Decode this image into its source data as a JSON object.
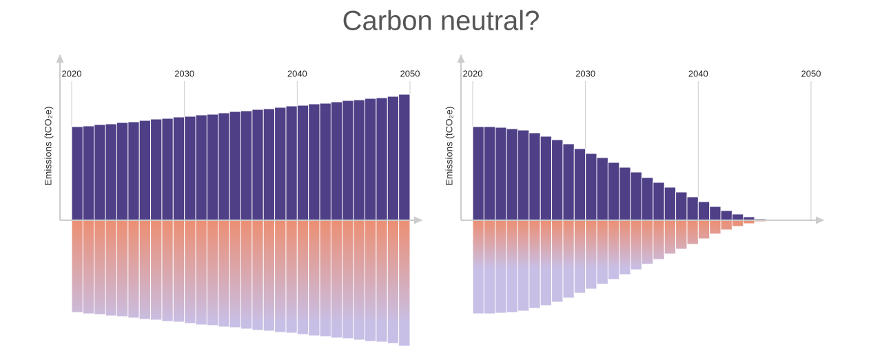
{
  "title": "Carbon neutral?",
  "chart_data": [
    {
      "type": "bar",
      "y_label": "Emissions (tCO₂e)",
      "x": [
        2020,
        2021,
        2022,
        2023,
        2024,
        2025,
        2026,
        2027,
        2028,
        2029,
        2030,
        2031,
        2032,
        2033,
        2034,
        2035,
        2036,
        2037,
        2038,
        2039,
        2040,
        2041,
        2042,
        2043,
        2044,
        2045,
        2046,
        2047,
        2048,
        2049
      ],
      "xlim": [
        2020,
        2050
      ],
      "xticks": [
        2020,
        2030,
        2040,
        2050
      ],
      "ylim": [
        -190,
        240
      ],
      "grid": true,
      "series": [
        {
          "color": "#4f3f86",
          "values": [
            136,
            137,
            139,
            140,
            142,
            143,
            145,
            147,
            148,
            150,
            151,
            153,
            154,
            156,
            158,
            159,
            161,
            162,
            164,
            166,
            167,
            169,
            170,
            172,
            174,
            175,
            177,
            178,
            180,
            183
          ]
        },
        {
          "gradient": [
            "#ec8f73",
            "#c8bfe6"
          ],
          "values": [
            -134,
            -136,
            -137,
            -139,
            -140,
            -142,
            -144,
            -145,
            -147,
            -148,
            -150,
            -152,
            -153,
            -155,
            -156,
            -158,
            -160,
            -161,
            -163,
            -164,
            -166,
            -168,
            -169,
            -171,
            -172,
            -174,
            -176,
            -177,
            -179,
            -183
          ]
        }
      ]
    },
    {
      "type": "bar",
      "y_label": "Emissions (tCO₂e)",
      "x": [
        2020,
        2021,
        2022,
        2023,
        2024,
        2025,
        2026,
        2027,
        2028,
        2029,
        2030,
        2031,
        2032,
        2033,
        2034,
        2035,
        2036,
        2037,
        2038,
        2039,
        2040,
        2041,
        2042,
        2043,
        2044,
        2045
      ],
      "xlim": [
        2020,
        2050
      ],
      "xticks": [
        2020,
        2030,
        2040,
        2050
      ],
      "ylim": [
        -190,
        240
      ],
      "grid": true,
      "series": [
        {
          "color": "#4f3f86",
          "values": [
            136,
            136,
            135,
            133,
            131,
            127,
            122,
            117,
            111,
            104,
            97,
            91,
            84,
            77,
            70,
            62,
            55,
            48,
            41,
            34,
            27,
            20,
            14,
            9,
            5,
            2
          ]
        },
        {
          "gradient": [
            "#ec8f73",
            "#c8bfe6"
          ],
          "values": [
            -136,
            -136,
            -135,
            -134,
            -132,
            -128,
            -124,
            -119,
            -113,
            -106,
            -100,
            -93,
            -86,
            -79,
            -72,
            -64,
            -57,
            -49,
            -42,
            -35,
            -27,
            -20,
            -14,
            -9,
            -5,
            -2
          ]
        }
      ]
    }
  ]
}
